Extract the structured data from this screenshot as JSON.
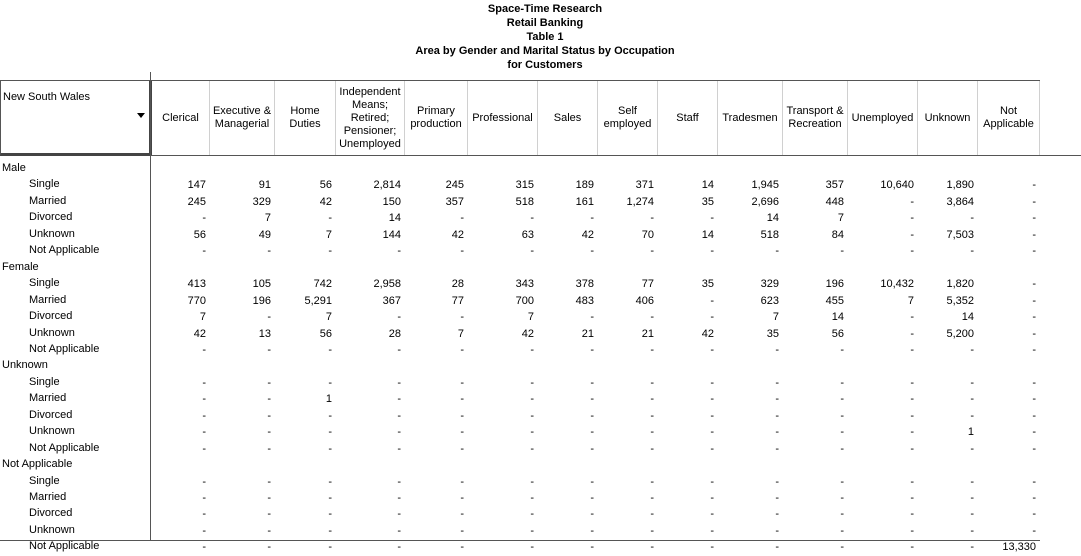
{
  "header": {
    "lines": [
      "Space-Time Research",
      "Retail Banking",
      "Table 1",
      "Area by Gender and Marital Status by Occupation",
      "for Customers"
    ]
  },
  "table": {
    "selector": "New South Wales",
    "columns": [
      "Clerical",
      "Executive & Managerial",
      "Home Duties",
      "Independent Means; Retired; Pensioner; Unemployed",
      "Primary production",
      "Professional",
      "Sales",
      "Self employed",
      "Staff",
      "Tradesmen",
      "Transport & Recreation",
      "Unemployed",
      "Unknown",
      "Not Applicable"
    ],
    "groups": [
      {
        "label": "Male",
        "rows": [
          {
            "label": "Single",
            "cells": [
              "147",
              "91",
              "56",
              "2,814",
              "245",
              "315",
              "189",
              "371",
              "14",
              "1,945",
              "357",
              "10,640",
              "1,890",
              "-"
            ]
          },
          {
            "label": "Married",
            "cells": [
              "245",
              "329",
              "42",
              "150",
              "357",
              "518",
              "161",
              "1,274",
              "35",
              "2,696",
              "448",
              "-",
              "3,864",
              "-"
            ]
          },
          {
            "label": "Divorced",
            "cells": [
              "-",
              "7",
              "-",
              "14",
              "-",
              "-",
              "-",
              "-",
              "-",
              "14",
              "7",
              "-",
              "-",
              "-"
            ]
          },
          {
            "label": "Unknown",
            "cells": [
              "56",
              "49",
              "7",
              "144",
              "42",
              "63",
              "42",
              "70",
              "14",
              "518",
              "84",
              "-",
              "7,503",
              "-"
            ]
          },
          {
            "label": "Not Applicable",
            "cells": [
              "-",
              "-",
              "-",
              "-",
              "-",
              "-",
              "-",
              "-",
              "-",
              "-",
              "-",
              "-",
              "-",
              "-"
            ]
          }
        ]
      },
      {
        "label": "Female",
        "rows": [
          {
            "label": "Single",
            "cells": [
              "413",
              "105",
              "742",
              "2,958",
              "28",
              "343",
              "378",
              "77",
              "35",
              "329",
              "196",
              "10,432",
              "1,820",
              "-"
            ]
          },
          {
            "label": "Married",
            "cells": [
              "770",
              "196",
              "5,291",
              "367",
              "77",
              "700",
              "483",
              "406",
              "-",
              "623",
              "455",
              "7",
              "5,352",
              "-"
            ]
          },
          {
            "label": "Divorced",
            "cells": [
              "7",
              "-",
              "7",
              "-",
              "-",
              "7",
              "-",
              "-",
              "-",
              "7",
              "14",
              "-",
              "14",
              "-"
            ]
          },
          {
            "label": "Unknown",
            "cells": [
              "42",
              "13",
              "56",
              "28",
              "7",
              "42",
              "21",
              "21",
              "42",
              "35",
              "56",
              "-",
              "5,200",
              "-"
            ]
          },
          {
            "label": "Not Applicable",
            "cells": [
              "-",
              "-",
              "-",
              "-",
              "-",
              "-",
              "-",
              "-",
              "-",
              "-",
              "-",
              "-",
              "-",
              "-"
            ]
          }
        ]
      },
      {
        "label": "Unknown",
        "rows": [
          {
            "label": "Single",
            "cells": [
              "-",
              "-",
              "-",
              "-",
              "-",
              "-",
              "-",
              "-",
              "-",
              "-",
              "-",
              "-",
              "-",
              "-"
            ]
          },
          {
            "label": "Married",
            "cells": [
              "-",
              "-",
              "1",
              "-",
              "-",
              "-",
              "-",
              "-",
              "-",
              "-",
              "-",
              "-",
              "-",
              "-"
            ]
          },
          {
            "label": "Divorced",
            "cells": [
              "-",
              "-",
              "-",
              "-",
              "-",
              "-",
              "-",
              "-",
              "-",
              "-",
              "-",
              "-",
              "-",
              "-"
            ]
          },
          {
            "label": "Unknown",
            "cells": [
              "-",
              "-",
              "-",
              "-",
              "-",
              "-",
              "-",
              "-",
              "-",
              "-",
              "-",
              "-",
              "1",
              "-"
            ]
          },
          {
            "label": "Not Applicable",
            "cells": [
              "-",
              "-",
              "-",
              "-",
              "-",
              "-",
              "-",
              "-",
              "-",
              "-",
              "-",
              "-",
              "-",
              "-"
            ]
          }
        ]
      },
      {
        "label": "Not Applicable",
        "rows": [
          {
            "label": "Single",
            "cells": [
              "-",
              "-",
              "-",
              "-",
              "-",
              "-",
              "-",
              "-",
              "-",
              "-",
              "-",
              "-",
              "-",
              "-"
            ]
          },
          {
            "label": "Married",
            "cells": [
              "-",
              "-",
              "-",
              "-",
              "-",
              "-",
              "-",
              "-",
              "-",
              "-",
              "-",
              "-",
              "-",
              "-"
            ]
          },
          {
            "label": "Divorced",
            "cells": [
              "-",
              "-",
              "-",
              "-",
              "-",
              "-",
              "-",
              "-",
              "-",
              "-",
              "-",
              "-",
              "-",
              "-"
            ]
          },
          {
            "label": "Unknown",
            "cells": [
              "-",
              "-",
              "-",
              "-",
              "-",
              "-",
              "-",
              "-",
              "-",
              "-",
              "-",
              "-",
              "-",
              "-"
            ]
          },
          {
            "label": "Not Applicable",
            "cells": [
              "-",
              "-",
              "-",
              "-",
              "-",
              "-",
              "-",
              "-",
              "-",
              "-",
              "-",
              "-",
              "-",
              "13,330"
            ]
          }
        ]
      }
    ]
  }
}
